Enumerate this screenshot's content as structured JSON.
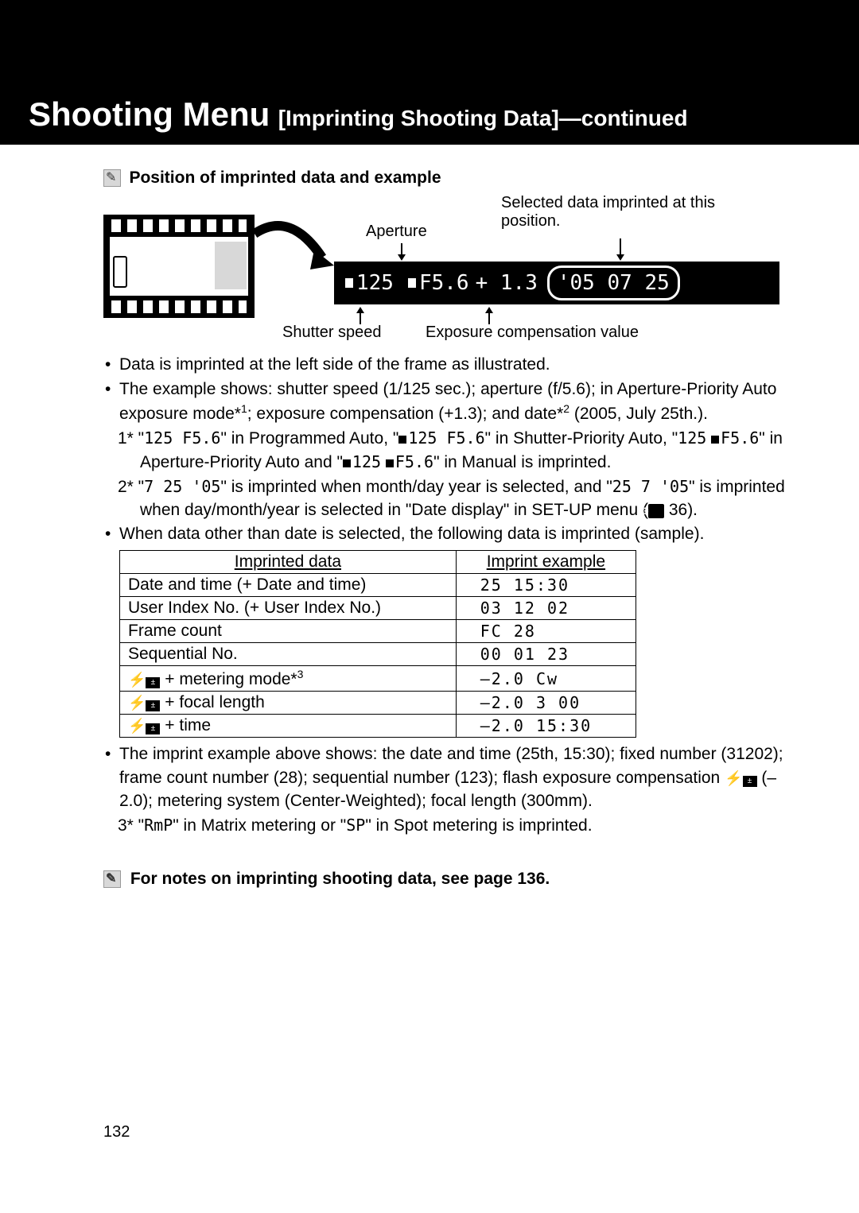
{
  "header": {
    "title_main": "Shooting Menu",
    "title_sub": "[Imprinting Shooting Data]—continued"
  },
  "section1": {
    "title": "Position of imprinted data and example",
    "labels": {
      "aperture": "Aperture",
      "shutter_speed": "Shutter speed",
      "exp_comp": "Exposure compensation value",
      "selected_pos": "Selected data imprinted at this position."
    },
    "lcd": {
      "shutter": "125",
      "aperture": "F5.6",
      "comp": "+ 1.3",
      "date": "'05 07 25"
    }
  },
  "bullets": {
    "b1": "Data is imprinted at the left side of the frame as illustrated.",
    "b2_p1": "The example shows: shutter speed (1/125 sec.); aperture (f/5.6); in Aperture-Priority Auto exposure mode*",
    "b2_sup1": "1",
    "b2_p2": "; exposure compensation (+1.3); and date*",
    "b2_sup2": "2",
    "b2_p3": " (2005, July 25th.).",
    "n1_prefix": "1* \"",
    "n1_seg1": "125 F5.6",
    "n1_mid1": "\" in Programmed Auto, \"",
    "n1_seg2": "125 F5.6",
    "n1_mid2": "\" in Shutter-Priority Auto, \"",
    "n1_seg3": "125",
    "n1_seg3b": "F5.6",
    "n1_mid3": "\" in Aperture-Priority Auto and \"",
    "n1_seg4a": "125",
    "n1_seg4b": "F5.6",
    "n1_end": "\" in Manual is imprinted.",
    "n2_prefix": "2* \"",
    "n2_seg1": "7 25 '05",
    "n2_mid1": "\" is imprinted when month/day year is selected, and \"",
    "n2_seg2": "25  7 '05",
    "n2_mid2": "\" is imprinted when day/month/year is selected in \"Date display\" in SET-UP menu (",
    "n2_pg": " 36).",
    "b3": "When data other than date is selected, the following data is imprinted (sample)."
  },
  "table": {
    "headers": {
      "col1": "Imprinted data",
      "col2": "Imprint example"
    },
    "rows": [
      {
        "c1": "Date and time (+ Date and time)",
        "c2": "25  15:30"
      },
      {
        "c1": "User Index No. (+ User Index No.)",
        "c2": "03  12 02"
      },
      {
        "c1": "Frame count",
        "c2": "FC     28"
      },
      {
        "c1": "Sequential No.",
        "c2": "00 01 23"
      },
      {
        "c1_icon": true,
        "c1": " + metering mode*",
        "c1_sup": "3",
        "c2": "–2.0   Cw"
      },
      {
        "c1_icon": true,
        "c1": " + focal length",
        "c2": "–2.0  3 00"
      },
      {
        "c1_icon": true,
        "c1": " + time",
        "c2": "–2.0  15:30"
      }
    ]
  },
  "after_table": {
    "b4_p1": "The imprint example above shows: the date and time (25th, 15:30); fixed number (31202); frame count number (28); sequential number (123); flash exposure compensation ",
    "b4_p2": " (–2.0); metering system (Center-Weighted); focal length (300mm).",
    "n3_prefix": "3* \"",
    "n3_seg1": "RmP",
    "n3_mid": "\" in Matrix metering or \"",
    "n3_seg2": "SP",
    "n3_end": "\" in Spot metering is imprinted."
  },
  "notes_ref": "For notes on imprinting shooting data, see page 136.",
  "page_number": "132",
  "colors": {
    "black": "#000000",
    "white": "#ffffff",
    "gray": "#d8d8d8"
  }
}
